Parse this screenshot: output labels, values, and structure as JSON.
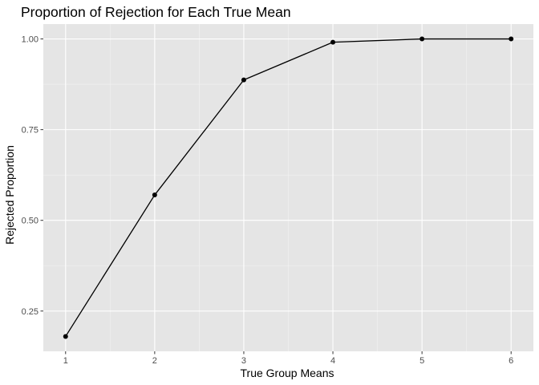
{
  "chart_data": {
    "type": "line",
    "title": "Proportion of Rejection for Each True Mean",
    "xlabel": "True Group Means",
    "ylabel": "Rejected Proportion",
    "x": [
      1,
      2,
      3,
      4,
      5,
      6
    ],
    "series": [
      {
        "values": [
          0.18,
          0.57,
          0.887,
          0.991,
          1.0,
          1.0
        ]
      }
    ],
    "xlim": [
      0.75,
      6.25
    ],
    "ylim": [
      0.139,
      1.041
    ],
    "xticks": [
      1,
      2,
      3,
      4,
      5,
      6
    ],
    "xtick_labels": [
      "1",
      "2",
      "3",
      "4",
      "5",
      "6"
    ],
    "yticks": [
      0.25,
      0.5,
      0.75,
      1.0
    ],
    "ytick_labels": [
      "0.25",
      "0.50",
      "0.75",
      "1.00"
    ],
    "grid": true,
    "markers": true,
    "colors": {
      "panel_background": "#e5e5e5",
      "grid_major": "#ffffff",
      "grid_minor": "#f2f2f2",
      "line": "#000000",
      "tick_label": "#4d4d4d"
    }
  }
}
